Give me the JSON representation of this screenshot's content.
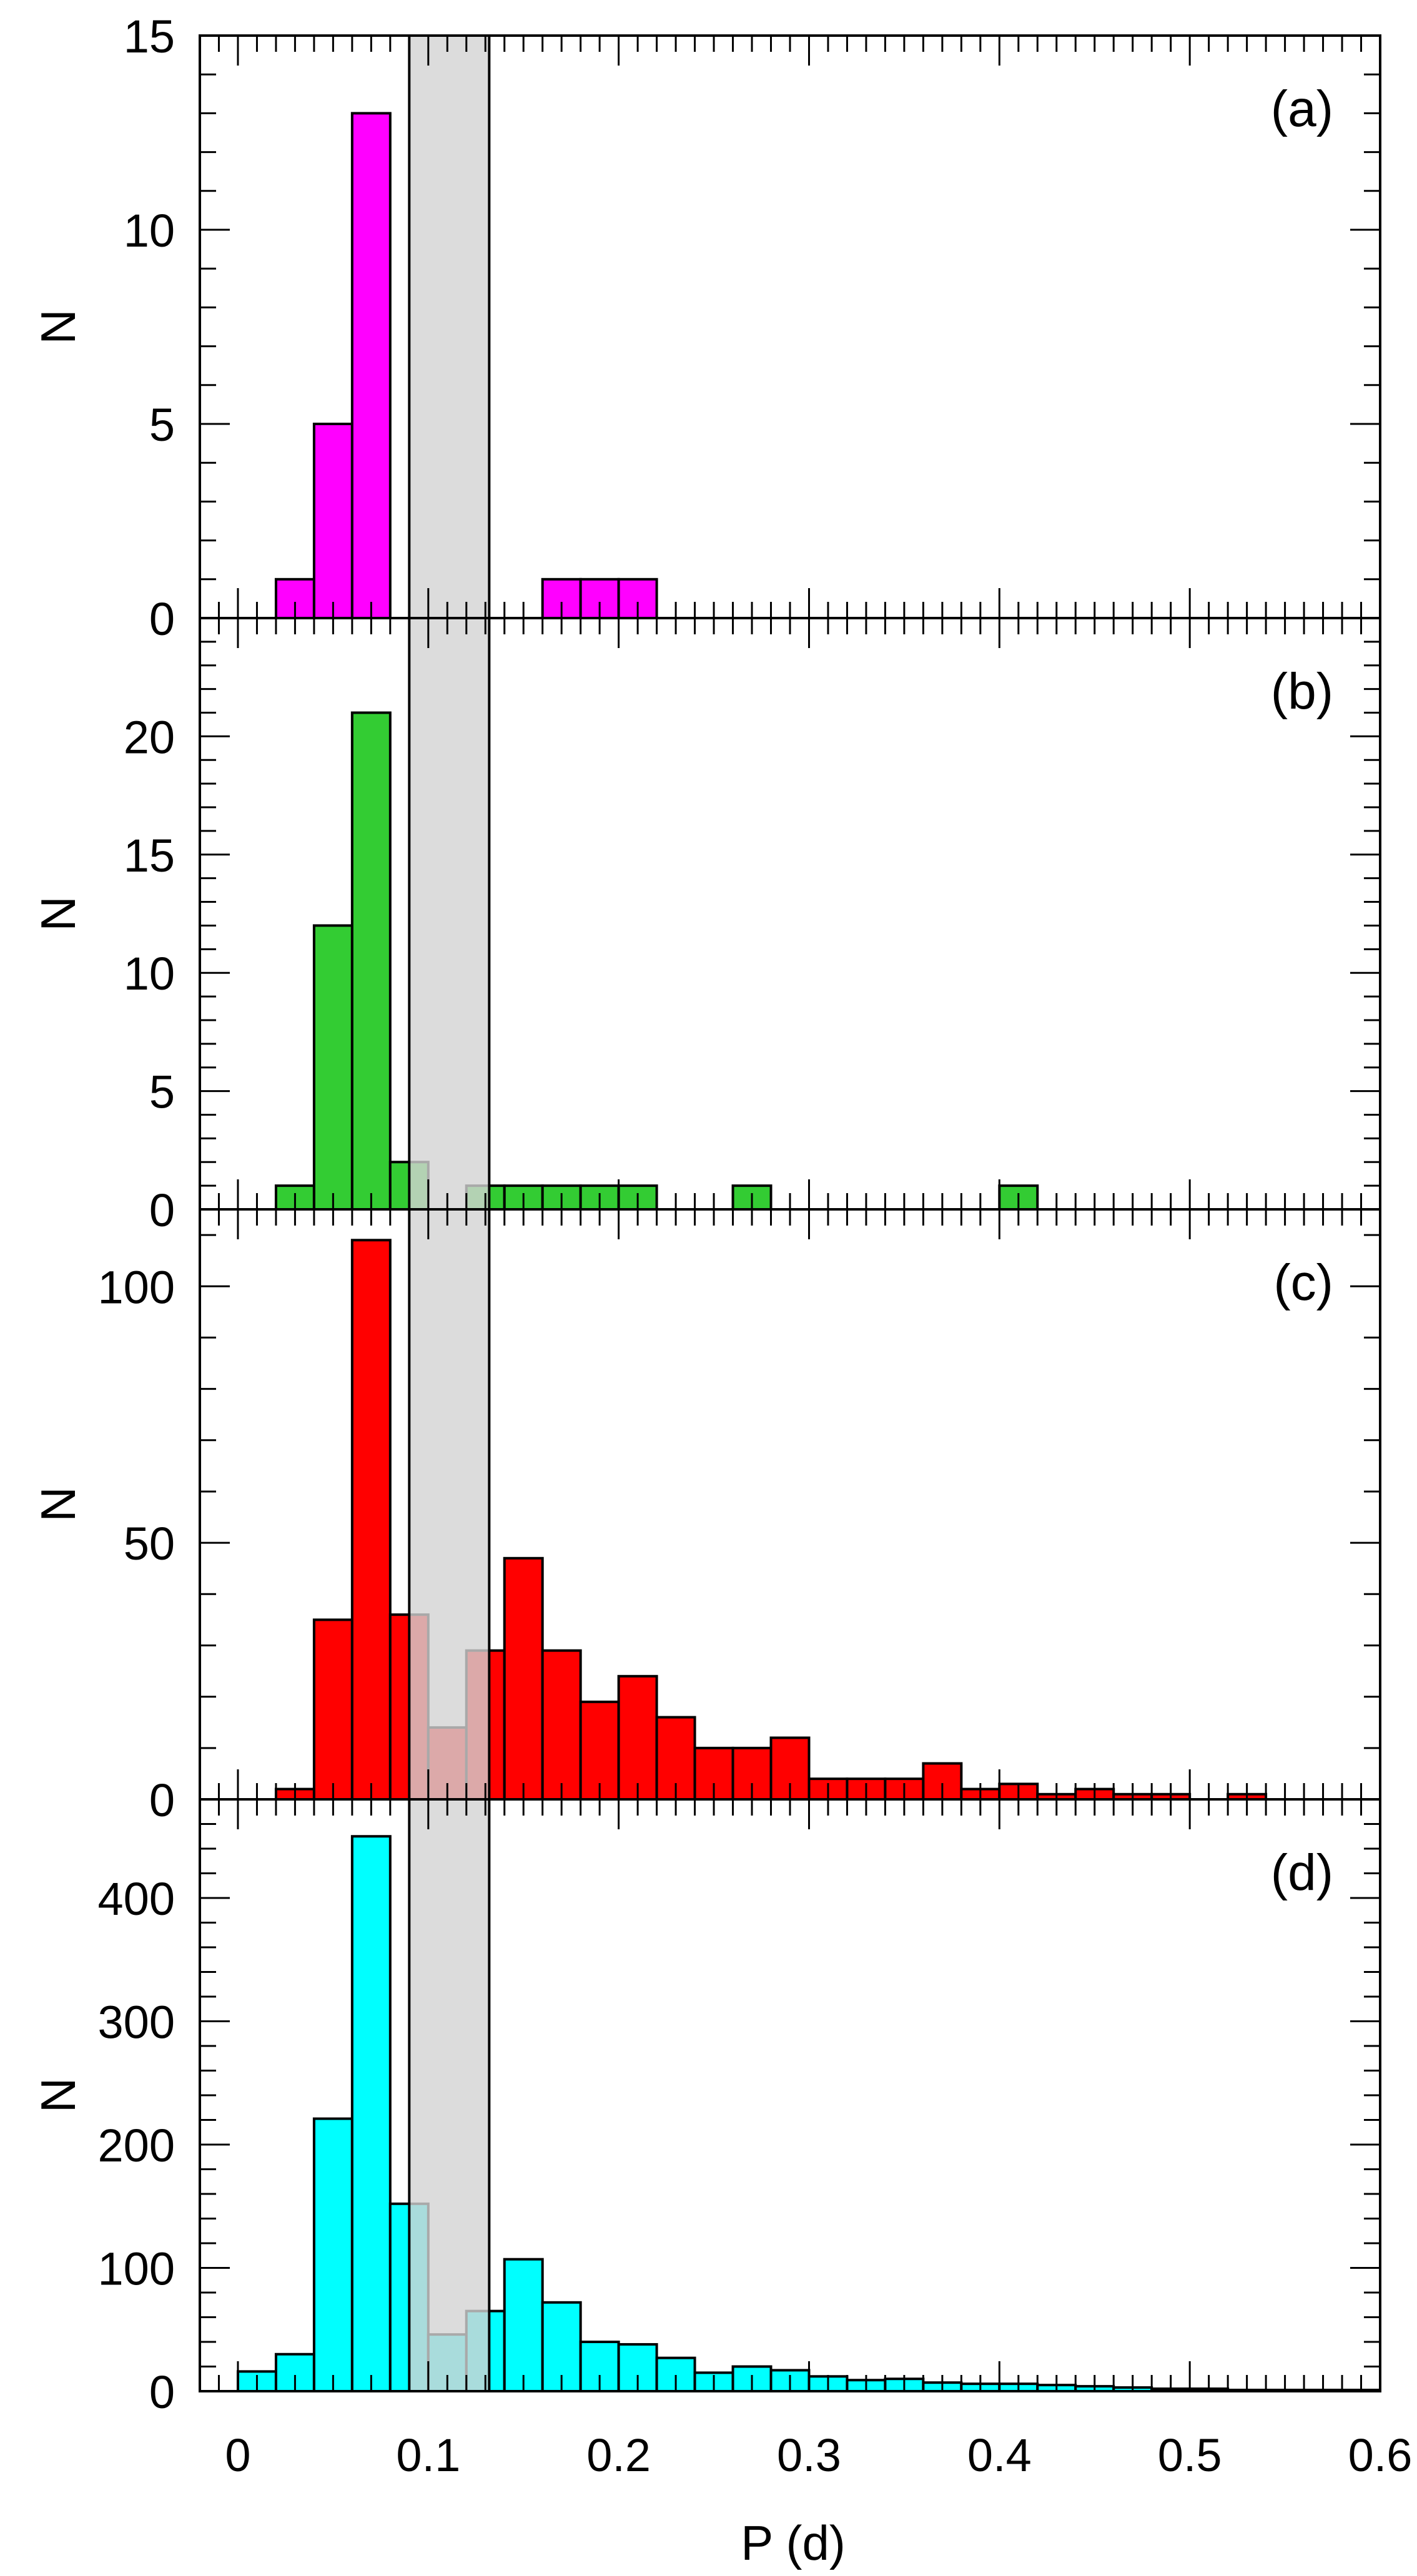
{
  "chart_data": [
    {
      "type": "bar",
      "panel_label": "(a)",
      "color": "#ff00ff",
      "ylabel": "N",
      "ylim": [
        0,
        15
      ],
      "yticks": [
        0,
        5,
        10,
        15
      ],
      "bin_width": 0.02,
      "bin_starts": [
        0.02,
        0.04,
        0.06,
        0.16,
        0.18,
        0.2
      ],
      "values": [
        1,
        5,
        13,
        1,
        1,
        1
      ]
    },
    {
      "type": "bar",
      "panel_label": "(b)",
      "color": "#33cc33",
      "ylabel": "N",
      "ylim": [
        0,
        25
      ],
      "yticks": [
        0,
        5,
        10,
        15,
        20
      ],
      "bin_width": 0.02,
      "bin_starts": [
        0.02,
        0.04,
        0.06,
        0.08,
        0.1,
        0.12,
        0.14,
        0.16,
        0.18,
        0.2,
        0.26,
        0.4
      ],
      "values": [
        1,
        12,
        21,
        2,
        0,
        1,
        1,
        1,
        1,
        1,
        1,
        1
      ]
    },
    {
      "type": "bar",
      "panel_label": "(c)",
      "color": "#ff0000",
      "ylabel": "N",
      "ylim": [
        0,
        115
      ],
      "yticks": [
        0,
        50,
        100
      ],
      "bin_width": 0.02,
      "bin_starts": [
        0.02,
        0.04,
        0.06,
        0.08,
        0.1,
        0.12,
        0.14,
        0.16,
        0.18,
        0.2,
        0.22,
        0.24,
        0.26,
        0.28,
        0.3,
        0.32,
        0.34,
        0.36,
        0.38,
        0.4,
        0.42,
        0.44,
        0.46,
        0.48,
        0.52
      ],
      "values": [
        2,
        35,
        109,
        36,
        14,
        29,
        47,
        29,
        19,
        24,
        16,
        10,
        10,
        12,
        4,
        4,
        4,
        7,
        2,
        3,
        1,
        2,
        1,
        1,
        1
      ]
    },
    {
      "type": "bar",
      "panel_label": "(d)",
      "color": "#00ffff",
      "ylabel": "N",
      "ylim": [
        0,
        480
      ],
      "yticks": [
        0,
        100,
        200,
        300,
        400
      ],
      "bin_width": 0.02,
      "bin_starts": [
        0.0,
        0.02,
        0.04,
        0.06,
        0.08,
        0.1,
        0.12,
        0.14,
        0.16,
        0.18,
        0.2,
        0.22,
        0.24,
        0.26,
        0.28,
        0.3,
        0.32,
        0.34,
        0.36,
        0.38,
        0.4,
        0.42,
        0.44,
        0.46,
        0.48,
        0.5,
        0.52,
        0.54,
        0.56,
        0.58
      ],
      "values": [
        16,
        30,
        221,
        450,
        152,
        46,
        65,
        107,
        72,
        40,
        38,
        27,
        15,
        20,
        17,
        12,
        9,
        10,
        7,
        6,
        6,
        5,
        4,
        3,
        2,
        2,
        1,
        1,
        1,
        1
      ]
    }
  ],
  "shared": {
    "xlabel": "P (d)",
    "xlim": [
      -0.02,
      0.6
    ],
    "xticks": [
      "0",
      "0.1",
      "0.2",
      "0.3",
      "0.4",
      "0.5",
      "0.6"
    ],
    "xtick_values": [
      0,
      0.1,
      0.2,
      0.3,
      0.4,
      0.5,
      0.6
    ],
    "gap_band": [
      0.09,
      0.132
    ],
    "gap_band_color": "#d3d3d3"
  }
}
